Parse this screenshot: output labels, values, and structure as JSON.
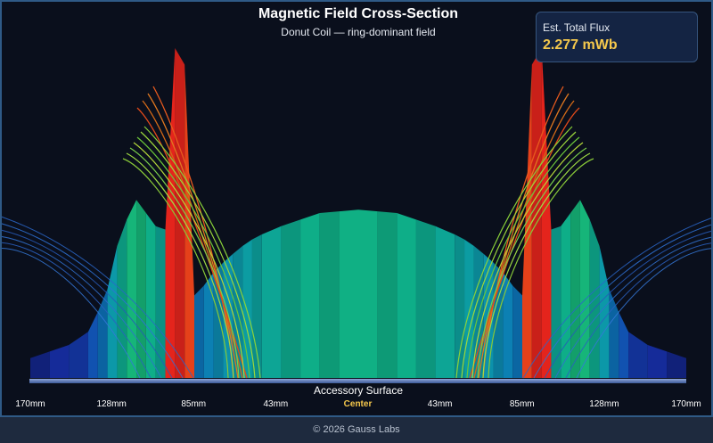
{
  "header": {
    "title": "Magnetic Field Cross-Section",
    "subtitle": "Donut Coil — ring-dominant field"
  },
  "flux_card": {
    "label": "Est. Total Flux",
    "value": "2.277 mWb"
  },
  "surface_label": "Accessory Surface",
  "footer": "© 2026 Gauss Labs",
  "colors": {
    "background": "#0a0f1c",
    "highlight": "#f5c84c",
    "surface": "#5a78b8"
  },
  "chart_data": {
    "type": "area",
    "title": "Magnetic Field Cross-Section",
    "subtitle": "Donut Coil — ring-dominant field",
    "x_unit": "mm",
    "x_range": [
      -170,
      170
    ],
    "tick_labels": [
      "170mm",
      "128mm",
      "85mm",
      "43mm",
      "Center",
      "43mm",
      "85mm",
      "128mm",
      "170mm"
    ],
    "highlighted_tick": "Center",
    "y_range": [
      0,
      1
    ],
    "profile": {
      "x": [
        0,
        10,
        20,
        30,
        40,
        50,
        55,
        60,
        65,
        70,
        75,
        80,
        85,
        90,
        95,
        100,
        105,
        110,
        115,
        120,
        125,
        130,
        135,
        140,
        150,
        160,
        170
      ],
      "y": [
        0.51,
        0.505,
        0.5,
        0.48,
        0.46,
        0.435,
        0.42,
        0.4,
        0.376,
        0.35,
        0.32,
        0.28,
        0.25,
        0.95,
        1.0,
        0.45,
        0.46,
        0.5,
        0.54,
        0.48,
        0.4,
        0.27,
        0.2,
        0.14,
        0.1,
        0.08,
        0.06
      ]
    },
    "field_line_groups": [
      {
        "strength": "strong",
        "count": 4
      },
      {
        "strength": "medium",
        "count": 7
      },
      {
        "strength": "weak",
        "count": 6
      }
    ],
    "symmetric": true,
    "grid": false,
    "legend": "none"
  }
}
